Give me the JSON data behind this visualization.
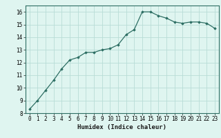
{
  "x": [
    0,
    1,
    2,
    3,
    4,
    5,
    6,
    7,
    8,
    9,
    10,
    11,
    12,
    13,
    14,
    15,
    16,
    17,
    18,
    19,
    20,
    21,
    22,
    23
  ],
  "y": [
    8.3,
    9.0,
    9.8,
    10.6,
    11.5,
    12.2,
    12.4,
    12.8,
    12.8,
    13.0,
    13.1,
    13.4,
    14.2,
    14.6,
    16.0,
    16.0,
    15.7,
    15.5,
    15.2,
    15.1,
    15.2,
    15.2,
    15.1,
    14.7
  ],
  "xlabel": "Humidex (Indice chaleur)",
  "line_color": "#2d6e63",
  "marker": "D",
  "marker_size": 1.8,
  "bg_color": "#dff5f0",
  "grid_color": "#b8ddd6",
  "tick_color": "#1a1a1a",
  "spine_color": "#2d6e63",
  "ylim": [
    8,
    16.5
  ],
  "xlim": [
    -0.5,
    23.5
  ],
  "yticks": [
    8,
    9,
    10,
    11,
    12,
    13,
    14,
    15,
    16
  ],
  "xticks": [
    0,
    1,
    2,
    3,
    4,
    5,
    6,
    7,
    8,
    9,
    10,
    11,
    12,
    13,
    14,
    15,
    16,
    17,
    18,
    19,
    20,
    21,
    22,
    23
  ],
  "xlabel_fontsize": 6.5,
  "tick_fontsize": 5.5,
  "linewidth": 0.9
}
